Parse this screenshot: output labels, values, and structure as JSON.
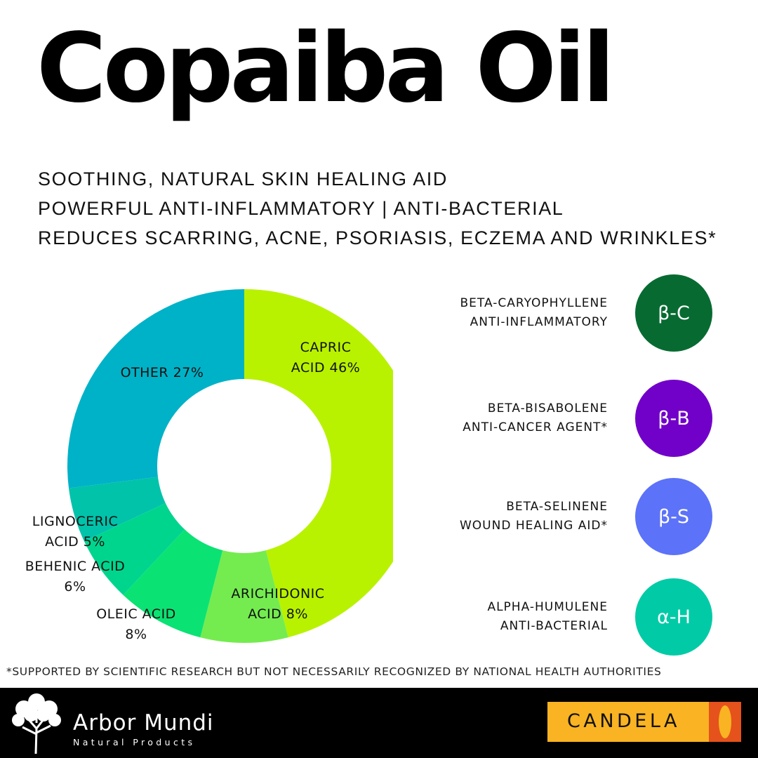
{
  "title": "Copaiba Oil",
  "benefits": [
    "SOOTHING, NATURAL SKIN HEALING AID",
    "POWERFUL ANTI-INFLAMMATORY | ANTI-BACTERIAL",
    "REDUCES SCARRING, ACNE, PSORIASIS, ECZEMA AND WRINKLES*"
  ],
  "chart_data": {
    "type": "pie",
    "donut": true,
    "slices": [
      {
        "label_lines": [
          "CAPRIC",
          "ACID 46%"
        ],
        "value": 46,
        "color": "#B8F200"
      },
      {
        "label_lines": [
          "ARICHIDONIC",
          "ACID 8%"
        ],
        "value": 8,
        "color": "#74EC4F"
      },
      {
        "label_lines": [
          "OLEIC ACID",
          "8%"
        ],
        "value": 8,
        "color": "#0BE274"
      },
      {
        "label_lines": [
          "BEHENIC ACID",
          "6%"
        ],
        "value": 6,
        "color": "#00D58E"
      },
      {
        "label_lines": [
          "LIGNOCERIC",
          "ACID 5%"
        ],
        "value": 5,
        "color": "#00C3AA"
      },
      {
        "label_lines": [
          "OTHER 27%"
        ],
        "value": 27,
        "color": "#00B2C7"
      }
    ]
  },
  "compounds": [
    {
      "name": "BETA-CARYOPHYLLENE",
      "property": "ANTI-INFLAMMATORY",
      "badge": "β-C",
      "color": "#076B31"
    },
    {
      "name": "BETA-BISABOLENE",
      "property": "ANTI-CANCER AGENT*",
      "badge": "β-B",
      "color": "#7100C9"
    },
    {
      "name": "BETA-SELINENE",
      "property": "WOUND HEALING AID*",
      "badge": "β-S",
      "color": "#5C72F8"
    },
    {
      "name": "ALPHA-HUMULENE",
      "property": "ANTI-BACTERIAL",
      "badge": "α-H",
      "color": "#00CBA6"
    }
  ],
  "footnote": "*SUPPORTED BY SCIENTIFIC RESEARCH BUT NOT NECESSARILY RECOGNIZED BY NATIONAL HEALTH AUTHORITIES",
  "footer": {
    "brand_name": "Arbor Mundi",
    "brand_sub": "Natural Products",
    "partner": "CANDELA"
  }
}
